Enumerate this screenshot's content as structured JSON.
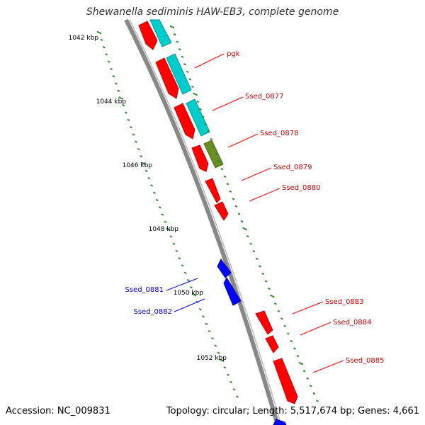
{
  "title": "Shewanella sediminis HAW-EB3, complete genome",
  "footer": {
    "accession": "Accession: NC_009831",
    "summary": "Topology: circular; Length: 5,517,674 bp; Genes: 4,661"
  },
  "colors": {
    "forward_gene": "#ff0000",
    "reverse_gene": "#0000ff",
    "rrna_or_other": "#00cccc",
    "highlight_gene": "#6b8e23",
    "backbone": "#888888",
    "tick": "#2e8b2e",
    "forward_label": "#cc0000",
    "reverse_label": "#0000cc"
  },
  "scale_labels": [
    {
      "text": "1042 kbp",
      "pos": 0.25
    },
    {
      "text": "1044 kbp",
      "pos": 1.75
    },
    {
      "text": "1046 kbp",
      "pos": 3.35
    },
    {
      "text": "1048 kbp",
      "pos": 4.95
    },
    {
      "text": "1050 kbp",
      "pos": 6.55
    },
    {
      "text": "1052 kbp",
      "pos": 8.15
    }
  ],
  "gene_labels": [
    {
      "text": "pgk",
      "strand": "forward"
    },
    {
      "text": "Ssed_0877",
      "strand": "forward"
    },
    {
      "text": "Ssed_0878",
      "strand": "forward"
    },
    {
      "text": "Ssed_0879",
      "strand": "forward"
    },
    {
      "text": "Ssed_0880",
      "strand": "forward"
    },
    {
      "text": "Ssed_0881",
      "strand": "reverse"
    },
    {
      "text": "Ssed_0882",
      "strand": "reverse"
    },
    {
      "text": "Ssed_0883",
      "strand": "forward"
    },
    {
      "text": "Ssed_0884",
      "strand": "forward"
    },
    {
      "text": "Ssed_0885",
      "strand": "forward"
    }
  ]
}
